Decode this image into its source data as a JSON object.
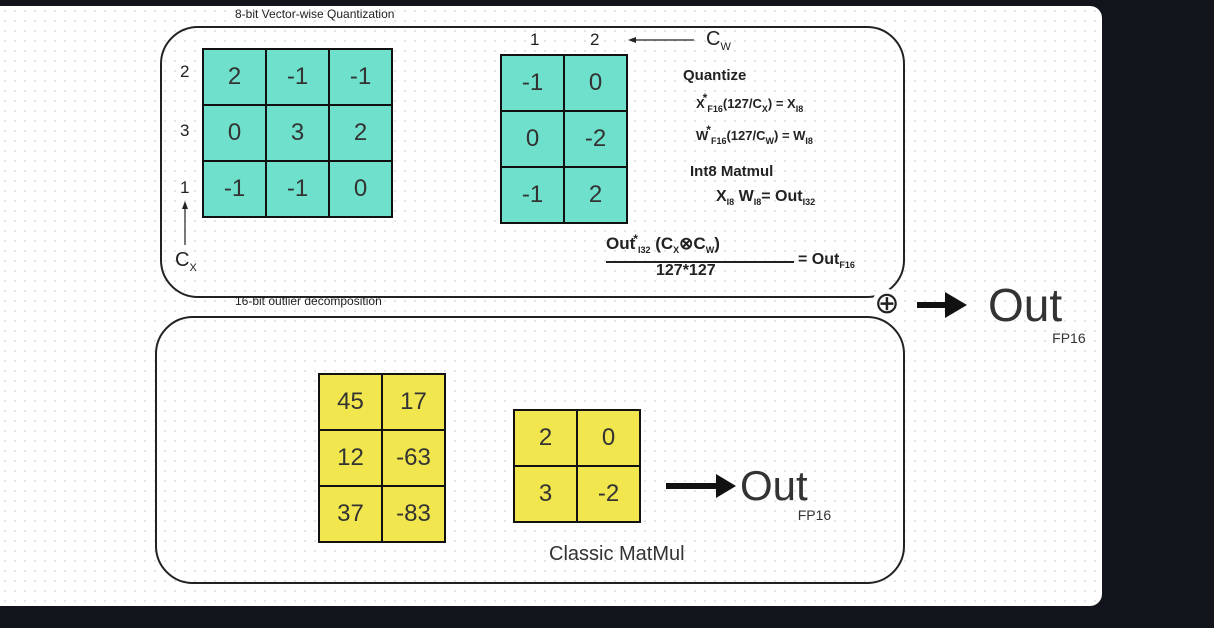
{
  "top_panel": {
    "caption": "8-bit Vector-wise Quantization",
    "x_matrix": [
      [
        "2",
        "-1",
        "-1"
      ],
      [
        "0",
        "3",
        "2"
      ],
      [
        "-1",
        "-1",
        "0"
      ]
    ],
    "x_row_labels": [
      "2",
      "3",
      "1"
    ],
    "cx_label": "C",
    "cx_sub": "X",
    "w_matrix": [
      [
        "-1",
        "0"
      ],
      [
        "0",
        "-2"
      ],
      [
        "-1",
        "2"
      ]
    ],
    "w_col_labels": [
      "1",
      "2"
    ],
    "cw_label": "C",
    "cw_sub": "W",
    "quantize_title": "Quantize",
    "eq1": {
      "a": "X",
      "a_sub": "F16",
      "mid": "(127/C",
      "mid_sub": "X",
      "end": ") = X",
      "end_sub": "I8"
    },
    "eq2": {
      "a": "W",
      "a_sub": "F16",
      "mid": "(127/C",
      "mid_sub": "W",
      "end": ") = W",
      "end_sub": "I8"
    },
    "matmul_title": "Int8 Matmul",
    "eq3": {
      "a": "X",
      "a_sub": "I8",
      "b": " W",
      "b_sub": "I8",
      "end": "= Out",
      "end_sub": "I32"
    },
    "eq4": {
      "num_a": "Out",
      "num_a_sub": "I32",
      "num_mid": "  (C",
      "c1_sub": "X",
      "otimes": "⊗",
      "c2": "C",
      "c2_sub": "W",
      "close": ")",
      "den": "127*127",
      "rhs": "= Out",
      "rhs_sub": "F16"
    }
  },
  "bottom_panel": {
    "caption": "16-bit outlier decomposition",
    "x_matrix": [
      [
        "45",
        "17"
      ],
      [
        "12",
        "-63"
      ],
      [
        "37",
        "-83"
      ]
    ],
    "w_matrix": [
      [
        "2",
        "0"
      ],
      [
        "3",
        "-2"
      ]
    ],
    "out_label": "Out",
    "out_sub": "FP16",
    "classic_label": "Classic MatMul"
  },
  "final": {
    "plus_symbol": "⊕",
    "out_label": "Out",
    "out_sub": "FP16"
  }
}
